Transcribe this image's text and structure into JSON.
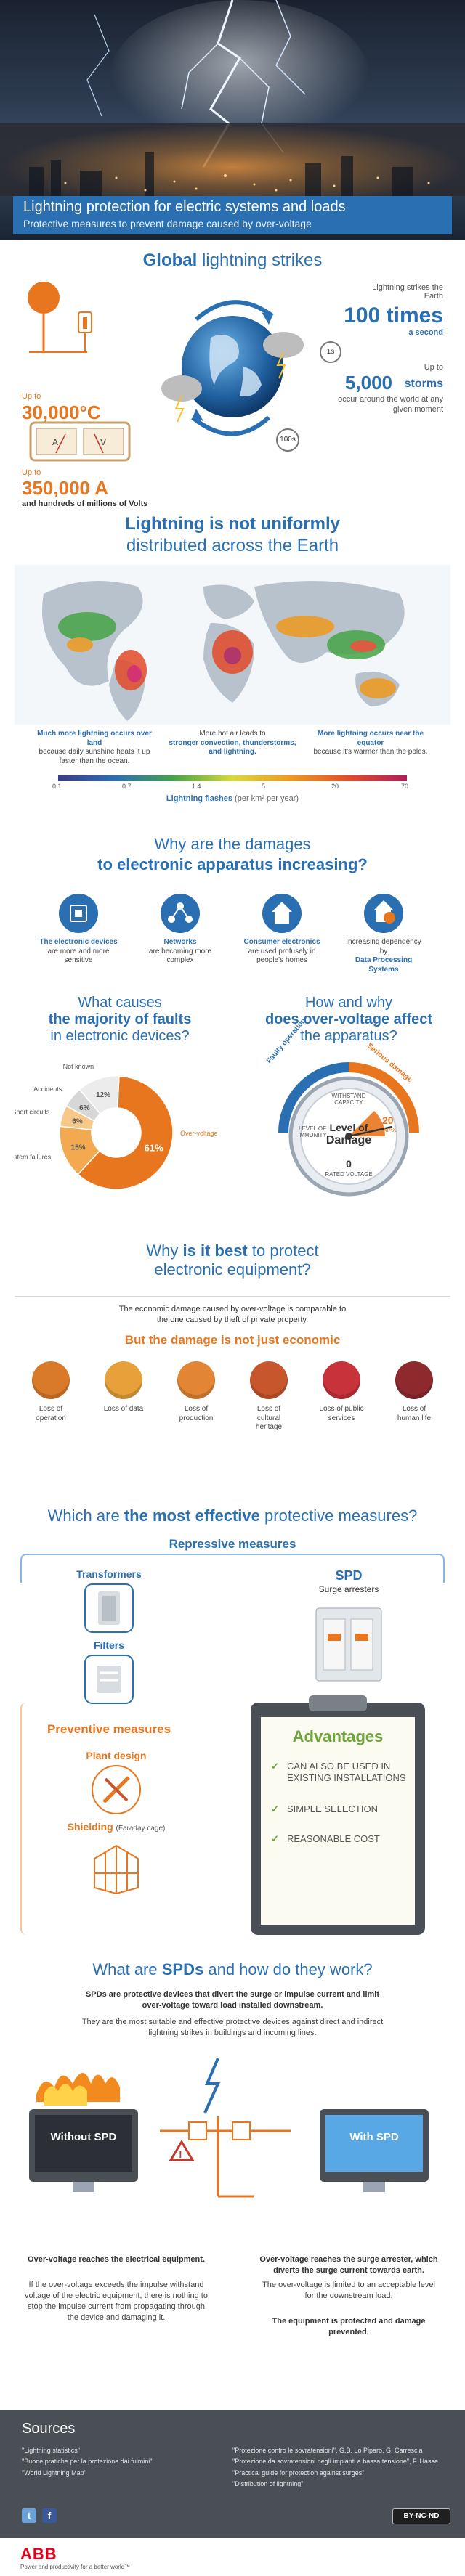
{
  "hero": {
    "title": "Lightning protection for electric systems and loads",
    "subtitle": "Protective measures to prevent damage caused by over-voltage"
  },
  "global": {
    "title_bold": "Global",
    "title_rest": " lightning strikes",
    "temp_prefix": "Up to",
    "temp_value": "30,000°C",
    "current_prefix": "Up to",
    "current_value": "350,000 A",
    "current_suffix": "and hundreds of millions of Volts",
    "strike_text": "Lightning strikes the Earth",
    "strike_value": "100 times",
    "strike_suffix": "a second",
    "storms_prefix": "Up to",
    "storms_value": "5,000",
    "storms_word": "storms",
    "storms_suffix": "occur around the world at any given moment",
    "badge1": "1s",
    "badge2": "100s"
  },
  "distribution": {
    "title_bold": "Lightning is not uniformly",
    "title_rest": "distributed across the Earth",
    "col1_bold": "Much more lightning occurs over land",
    "col1_text": "because daily sunshine heats it up faster than the ocean.",
    "col2_text": "More hot air leads to",
    "col2_bold": "stronger convection, thunderstorms, and lightning.",
    "col3_bold": "More lightning occurs near the equator",
    "col3_text": "because it's warmer than the poles.",
    "scale_ticks": [
      "0.1",
      "0.7",
      "1.4",
      "5",
      "20",
      "70"
    ],
    "scale_label": "Lightning flashes",
    "scale_unit": "(per km² per year)"
  },
  "damages": {
    "title1": "Why are the damages",
    "title2": "to electronic apparatus increasing?",
    "items": [
      {
        "bold": "The electronic devices",
        "text": "are more and more sensitive"
      },
      {
        "bold": "Networks",
        "text": "are becoming more complex"
      },
      {
        "bold": "Consumer electronics",
        "text": "are used profusely in people's homes"
      },
      {
        "text": "Increasing dependency by",
        "bold": "Data Processing Systems"
      }
    ]
  },
  "faults": {
    "title1": "What causes",
    "title2": "the majority of faults",
    "title3": "in electronic devices?",
    "slices": [
      {
        "label": "Over-voltage",
        "value": 61,
        "text": "61%"
      },
      {
        "label": "Network system failures",
        "value": 15,
        "text": "15%"
      },
      {
        "label": "Short circuits",
        "value": 6,
        "text": "6%"
      },
      {
        "label": "Accidents",
        "value": 6,
        "text": "6%"
      },
      {
        "label": "Not known",
        "value": 12,
        "text": "12%"
      }
    ],
    "colors": [
      "#e8761e",
      "#f2a950",
      "#f6c98b",
      "#d7d7d7",
      "#ececec"
    ]
  },
  "overvoltage": {
    "title1": "How and why",
    "title2": "does over-voltage affect",
    "title3": "the apparatus?",
    "arc1": "Faulty operation",
    "arc2": "Serious damage",
    "gauge_withstand": "WITHSTAND CAPACITY",
    "gauge_immunity": "LEVEL OF IMMUNITY",
    "gauge_center1": "Level of",
    "gauge_center2": "Damage",
    "gauge_max": "20",
    "gauge_max_unit": "MAX",
    "gauge_zero": "0",
    "gauge_rated": "RATED VOLTAGE"
  },
  "protect": {
    "title1": "Why",
    "title_bold": "is it best",
    "title2": "to protect",
    "title3": "electronic equipment?",
    "para": "The economic damage caused by over-voltage is comparable to the one caused by theft of private property.",
    "sub": "But the damage is not just economic",
    "losses": [
      {
        "label": "Loss of operation",
        "color": "#d97a2b"
      },
      {
        "label": "Loss of data",
        "color": "#e8a13a"
      },
      {
        "label": "Loss of production",
        "color": "#e28534"
      },
      {
        "label": "Loss of cultural heritage",
        "color": "#c7562d"
      },
      {
        "label": "Loss of public services",
        "color": "#c8323a"
      },
      {
        "label": "Loss of human life",
        "color": "#8e2a2e"
      }
    ]
  },
  "measures": {
    "title_pre": "Which are",
    "title_bold": "the most effective",
    "title_post": "protective measures?",
    "repressive": "Repressive measures",
    "transformers": "Transformers",
    "filters": "Filters",
    "spd": "SPD",
    "spd_sub": "Surge arresters",
    "preventive": "Preventive measures",
    "plant_design": "Plant design",
    "shielding": "Shielding",
    "shielding_sub": "(Faraday cage)",
    "advantages": "Advantages",
    "adv_items": [
      "CAN ALSO BE USED IN EXISTING INSTALLATIONS",
      "SIMPLE SELECTION",
      "REASONABLE COST"
    ]
  },
  "spds": {
    "title_pre": "What are",
    "title_bold": "SPDs",
    "title_post": "and how do they work?",
    "para1": "SPDs are protective devices that divert the surge or impulse current and limit over-voltage toward load installed downstream.",
    "para2": "They are the most suitable and effective protective devices against direct and indirect lightning strikes in buildings and incoming lines.",
    "without": "Without SPD",
    "with": "With SPD",
    "left_bold": "Over-voltage reaches the electrical equipment.",
    "left_text": "If the over-voltage exceeds the impulse withstand voltage of the electric equipment, there is nothing to stop the impulse current from propagating through the device and damaging it.",
    "right_bold": "Over-voltage reaches the surge arrester, which diverts the surge current towards earth.",
    "right_text": "The over-voltage is limited to an acceptable level for the downstream load.",
    "right_final": "The equipment is protected and damage prevented."
  },
  "sources": {
    "title": "Sources",
    "left": [
      "\"Lightning statistics\"",
      "\"Buone pratiche per la protezione dai fulmini\"",
      "\"World Lightning Map\""
    ],
    "right": [
      "\"Protezione contro le sovratensioni\", G.B. Lo Piparo, G. Carrescia",
      "\"Protezione da sovratensioni negli impianti a bassa tensione\", F. Hasse",
      "\"Practical guide for protection against surges\"",
      "\"Distribution of lightning\""
    ],
    "license": "BY-NC-ND"
  },
  "footer": {
    "brand": "ABB",
    "tagline": "Power and productivity for a better world™"
  }
}
